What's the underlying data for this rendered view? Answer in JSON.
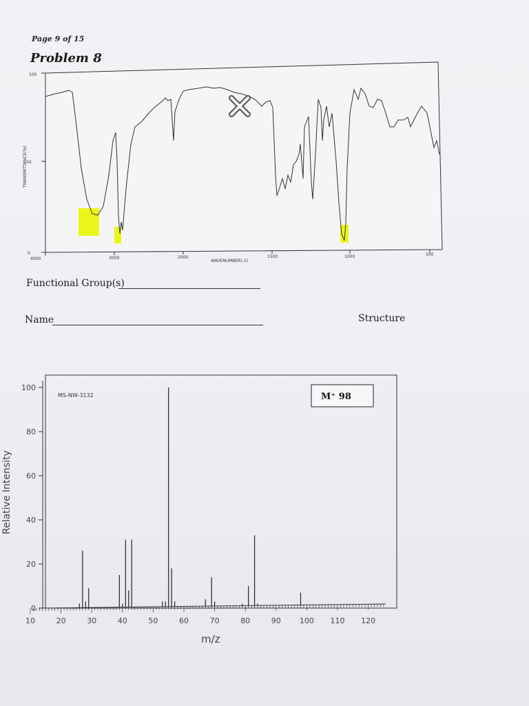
{
  "header": {
    "page": "Page 9 of 15",
    "problem": "Problem 8"
  },
  "ir": {
    "y_top_tick": "100",
    "y_mid_tick": "50",
    "y_bottom_tick": "0",
    "y_label": "TRANSMITTANCE(%)",
    "x_label": "WAVENUMBER(-1)",
    "x_ticks": [
      "4000",
      "3000",
      "2000",
      "1500",
      "1000",
      "500"
    ],
    "highlight_color": "#ecf51a",
    "cross_color": "#555555"
  },
  "form": {
    "functional_groups_label": "Functional Group(s)",
    "name_label": "Name",
    "structure_label": "Structure"
  },
  "chart_data": {
    "type": "bar",
    "title": "",
    "code": "MS-NW-3132",
    "molecular_ion": "M⁺ 98",
    "xlabel": "m/z",
    "ylabel": "Relative Intensity",
    "xlim": [
      10,
      125
    ],
    "ylim": [
      0,
      100
    ],
    "x_ticks": [
      "10",
      "20",
      "30",
      "40",
      "50",
      "60",
      "70",
      "80",
      "90",
      "100",
      "110",
      "120"
    ],
    "y_ticks": [
      "0",
      "20",
      "40",
      "60",
      "80",
      "100"
    ],
    "peaks": [
      {
        "mz": 26,
        "value": 2
      },
      {
        "mz": 27,
        "value": 26
      },
      {
        "mz": 28,
        "value": 3
      },
      {
        "mz": 29,
        "value": 9
      },
      {
        "mz": 39,
        "value": 15
      },
      {
        "mz": 40,
        "value": 2
      },
      {
        "mz": 41,
        "value": 31
      },
      {
        "mz": 42,
        "value": 8
      },
      {
        "mz": 43,
        "value": 31
      },
      {
        "mz": 53,
        "value": 3
      },
      {
        "mz": 54,
        "value": 3
      },
      {
        "mz": 55,
        "value": 100
      },
      {
        "mz": 56,
        "value": 18
      },
      {
        "mz": 57,
        "value": 3
      },
      {
        "mz": 67,
        "value": 4
      },
      {
        "mz": 69,
        "value": 14
      },
      {
        "mz": 70,
        "value": 3
      },
      {
        "mz": 79,
        "value": 2
      },
      {
        "mz": 81,
        "value": 10
      },
      {
        "mz": 83,
        "value": 33
      },
      {
        "mz": 84,
        "value": 2
      },
      {
        "mz": 98,
        "value": 7
      }
    ]
  }
}
